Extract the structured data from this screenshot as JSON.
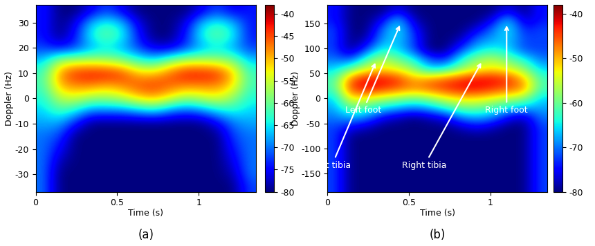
{
  "chart_data": [
    {
      "type": "heatmap",
      "caption": "(a)",
      "x_label": "Time (s)",
      "y_label": "Doppler (Hz)",
      "xlim": [
        0,
        1.35
      ],
      "ylim": [
        -37,
        37
      ],
      "xticks": [
        0,
        0.5,
        1
      ],
      "yticks": [
        -30,
        -20,
        -10,
        0,
        10,
        20,
        30
      ],
      "color_range": [
        -80,
        -38
      ],
      "color_ticks": [
        -80,
        -75,
        -70,
        -65,
        -60,
        -55,
        -50,
        -45,
        -40
      ],
      "cells": [
        [
          -70,
          -80,
          -80,
          -80,
          -80,
          -80,
          -80,
          -80,
          -80,
          -80,
          -80,
          -80,
          -80,
          -72
        ],
        [
          -70,
          -80,
          -80,
          -80,
          -80,
          -80,
          -80,
          -80,
          -80,
          -80,
          -80,
          -80,
          -78,
          -70
        ],
        [
          -70,
          -78,
          -80,
          -80,
          -80,
          -80,
          -80,
          -80,
          -80,
          -80,
          -80,
          -80,
          -76,
          -70
        ],
        [
          -70,
          -75,
          -80,
          -80,
          -80,
          -80,
          -80,
          -80,
          -80,
          -80,
          -80,
          -80,
          -74,
          -70
        ],
        [
          -70,
          -72,
          -80,
          -80,
          -80,
          -80,
          -80,
          -80,
          -80,
          -80,
          -80,
          -80,
          -72,
          -70
        ],
        [
          -68,
          -68,
          -74,
          -80,
          -80,
          -80,
          -80,
          -80,
          -80,
          -80,
          -80,
          -76,
          -70,
          -68
        ],
        [
          -66,
          -62,
          -65,
          -70,
          -70,
          -70,
          -68,
          -66,
          -70,
          -72,
          -70,
          -66,
          -64,
          -66
        ],
        [
          -64,
          -56,
          -55,
          -58,
          -58,
          -56,
          -52,
          -50,
          -54,
          -58,
          -56,
          -54,
          -58,
          -64
        ],
        [
          -62,
          -50,
          -48,
          -48,
          -50,
          -48,
          -45,
          -44,
          -46,
          -48,
          -48,
          -48,
          -52,
          -62
        ],
        [
          -62,
          -48,
          -43,
          -42,
          -42,
          -44,
          -50,
          -50,
          -46,
          -42,
          -42,
          -43,
          -50,
          -62
        ],
        [
          -66,
          -56,
          -55,
          -55,
          -56,
          -58,
          -62,
          -64,
          -58,
          -55,
          -55,
          -56,
          -58,
          -66
        ],
        [
          -72,
          -74,
          -72,
          -68,
          -66,
          -68,
          -72,
          -76,
          -76,
          -72,
          -68,
          -66,
          -68,
          -72
        ],
        [
          -74,
          -80,
          -74,
          -64,
          -60,
          -64,
          -74,
          -80,
          -80,
          -74,
          -64,
          -60,
          -64,
          -74
        ],
        [
          -74,
          -80,
          -76,
          -66,
          -63,
          -66,
          -76,
          -80,
          -80,
          -76,
          -66,
          -63,
          -66,
          -74
        ],
        [
          -74,
          -80,
          -80,
          -76,
          -72,
          -76,
          -80,
          -80,
          -80,
          -80,
          -76,
          -72,
          -76,
          -74
        ]
      ]
    },
    {
      "type": "heatmap",
      "caption": "(b)",
      "x_label": "Time (s)",
      "y_label": "Doppler (Hz)",
      "xlim": [
        0,
        1.35
      ],
      "ylim": [
        -187,
        187
      ],
      "xticks": [
        0,
        0.5,
        1
      ],
      "yticks": [
        -150,
        -100,
        -50,
        0,
        50,
        100,
        150
      ],
      "color_range": [
        -80,
        -38
      ],
      "color_ticks": [
        -80,
        -70,
        -60,
        -50,
        -40
      ],
      "annotations": [
        {
          "text": "Left foot",
          "x": 0.45,
          "y": 150
        },
        {
          "text": "Left tibia",
          "x": 0.3,
          "y": 75
        },
        {
          "text": "Right tibia",
          "x": 0.95,
          "y": 75
        },
        {
          "text": "Right foot",
          "x": 1.1,
          "y": 150
        }
      ],
      "cells": [
        [
          -72,
          -80,
          -80,
          -80,
          -80,
          -80,
          -80,
          -80,
          -80,
          -80,
          -80,
          -80,
          -80,
          -72
        ],
        [
          -72,
          -80,
          -80,
          -80,
          -80,
          -80,
          -80,
          -80,
          -80,
          -80,
          -80,
          -80,
          -80,
          -72
        ],
        [
          -72,
          -80,
          -80,
          -80,
          -80,
          -80,
          -80,
          -80,
          -80,
          -80,
          -80,
          -80,
          -80,
          -72
        ],
        [
          -72,
          -80,
          -80,
          -80,
          -80,
          -80,
          -80,
          -80,
          -80,
          -80,
          -80,
          -80,
          -80,
          -72
        ],
        [
          -72,
          -80,
          -80,
          -80,
          -80,
          -80,
          -80,
          -80,
          -80,
          -80,
          -80,
          -80,
          -80,
          -72
        ],
        [
          -72,
          -80,
          -80,
          -80,
          -80,
          -80,
          -80,
          -80,
          -80,
          -80,
          -80,
          -80,
          -80,
          -72
        ],
        [
          -72,
          -76,
          -78,
          -80,
          -80,
          -80,
          -80,
          -80,
          -78,
          -76,
          -78,
          -80,
          -80,
          -72
        ],
        [
          -70,
          -68,
          -70,
          -76,
          -78,
          -80,
          -78,
          -76,
          -70,
          -68,
          -70,
          -76,
          -78,
          -70
        ],
        [
          -68,
          -60,
          -62,
          -66,
          -68,
          -70,
          -68,
          -64,
          -60,
          -60,
          -62,
          -66,
          -68,
          -68
        ],
        [
          -66,
          -52,
          -54,
          -56,
          -58,
          -60,
          -58,
          -54,
          -52,
          -52,
          -54,
          -56,
          -58,
          -66
        ],
        [
          -62,
          -44,
          -42,
          -44,
          -46,
          -48,
          -46,
          -44,
          -42,
          -42,
          -44,
          -46,
          -48,
          -62
        ],
        [
          -62,
          -46,
          -42,
          -42,
          -44,
          -50,
          -48,
          -46,
          -44,
          -42,
          -42,
          -44,
          -50,
          -62
        ],
        [
          -66,
          -60,
          -54,
          -52,
          -54,
          -58,
          -66,
          -64,
          -58,
          -54,
          -52,
          -54,
          -58,
          -66
        ],
        [
          -70,
          -72,
          -62,
          -56,
          -60,
          -64,
          -72,
          -74,
          -64,
          -58,
          -56,
          -60,
          -64,
          -70
        ],
        [
          -72,
          -80,
          -72,
          -64,
          -66,
          -72,
          -80,
          -80,
          -72,
          -66,
          -64,
          -66,
          -72,
          -72
        ],
        [
          -72,
          -80,
          -78,
          -68,
          -66,
          -72,
          -80,
          -80,
          -78,
          -70,
          -68,
          -66,
          -72,
          -72
        ],
        [
          -72,
          -80,
          -80,
          -70,
          -64,
          -74,
          -80,
          -80,
          -80,
          -76,
          -70,
          -64,
          -74,
          -72
        ],
        [
          -74,
          -80,
          -80,
          -76,
          -66,
          -78,
          -80,
          -80,
          -80,
          -80,
          -76,
          -66,
          -78,
          -74
        ],
        [
          -74,
          -80,
          -80,
          -80,
          -76,
          -80,
          -80,
          -80,
          -80,
          -80,
          -80,
          -76,
          -80,
          -74
        ]
      ]
    }
  ]
}
